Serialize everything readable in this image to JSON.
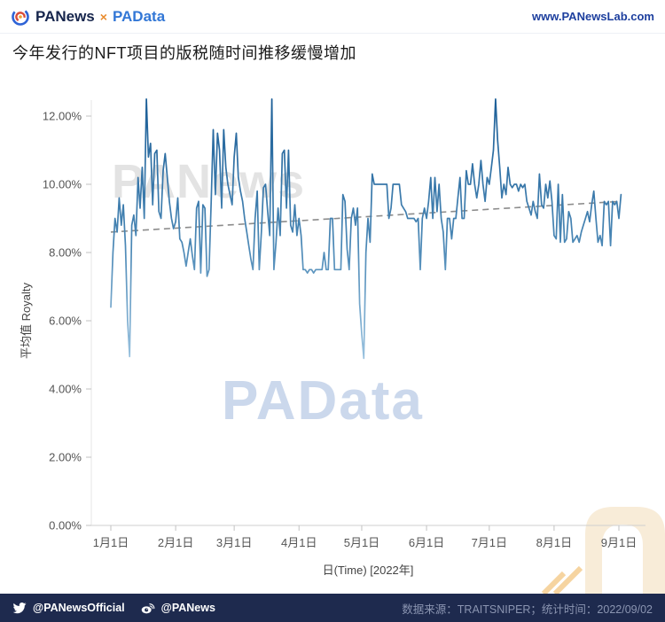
{
  "header": {
    "brand_left": "PANews",
    "brand_separator": "×",
    "brand_right": "PAData",
    "website": "www.PANewsLab.com"
  },
  "title": "今年发行的NFT项目的版税随时间推移缓慢增加",
  "watermarks": {
    "upper": "PANews",
    "center": "PAData"
  },
  "chart_data": {
    "type": "line",
    "title": "今年发行的NFT项目的版税随时间推移缓慢增加",
    "xlabel": "日(Time) [2022年]",
    "ylabel": "平均值 Royalty",
    "ylim": [
      0,
      12.5
    ],
    "grid": false,
    "legend_position": "none",
    "y_ticks": [
      {
        "value": 12,
        "label": "12.00%"
      },
      {
        "value": 10,
        "label": "10.00%"
      },
      {
        "value": 8,
        "label": "8.00%"
      },
      {
        "value": 6,
        "label": "6.00%"
      },
      {
        "value": 4,
        "label": "4.00%"
      },
      {
        "value": 2,
        "label": "2.00%"
      },
      {
        "value": 0,
        "label": "0.00%"
      }
    ],
    "x_ticks": [
      {
        "day": 0,
        "label": "1月1日"
      },
      {
        "day": 31,
        "label": "2月1日"
      },
      {
        "day": 59,
        "label": "3月1日"
      },
      {
        "day": 90,
        "label": "4月1日"
      },
      {
        "day": 120,
        "label": "5月1日"
      },
      {
        "day": 151,
        "label": "6月1日"
      },
      {
        "day": 181,
        "label": "7月1日"
      },
      {
        "day": 212,
        "label": "8月1日"
      },
      {
        "day": 243,
        "label": "9月1日"
      }
    ],
    "series": [
      {
        "name": "平均值 Royalty",
        "unit": "%",
        "start_label": "1月1日 2022年",
        "values": [
          6.4,
          8.0,
          9.0,
          8.6,
          9.6,
          8.8,
          9.4,
          8.2,
          6.0,
          4.95,
          8.8,
          9.1,
          8.5,
          10.2,
          9.3,
          10.5,
          9.0,
          12.5,
          10.8,
          11.2,
          9.4,
          10.9,
          11.0,
          9.2,
          9.0,
          10.4,
          10.9,
          10.2,
          9.5,
          9.0,
          8.7,
          8.9,
          9.6,
          8.4,
          8.3,
          8.0,
          7.6,
          8.0,
          8.4,
          7.9,
          7.5,
          9.3,
          9.5,
          7.4,
          9.4,
          9.3,
          7.3,
          7.5,
          9.5,
          11.6,
          9.7,
          11.5,
          11.0,
          9.3,
          11.6,
          10.5,
          10.0,
          9.7,
          9.4,
          10.8,
          11.5,
          10.2,
          9.8,
          9.5,
          9.0,
          8.6,
          8.2,
          7.8,
          7.5,
          9.0,
          9.8,
          7.5,
          8.6,
          9.9,
          10.0,
          9.2,
          8.5,
          12.5,
          7.5,
          8.3,
          9.3,
          8.5,
          10.9,
          11.0,
          9.3,
          11.0,
          8.8,
          8.6,
          9.4,
          8.5,
          9.0,
          8.5,
          7.5,
          7.5,
          7.4,
          7.5,
          7.5,
          7.4,
          7.5,
          7.5,
          7.5,
          7.5,
          8.0,
          7.5,
          7.5,
          9.0,
          9.0,
          7.5,
          7.5,
          7.5,
          7.5,
          9.7,
          9.5,
          8.1,
          7.5,
          9.0,
          9.3,
          8.8,
          9.3,
          6.5,
          5.6,
          4.9,
          8.0,
          9.0,
          8.3,
          10.3,
          10.0,
          10.0,
          10.0,
          10.0,
          10.0,
          10.0,
          10.0,
          9.0,
          9.3,
          10.0,
          10.0,
          10.0,
          10.0,
          9.4,
          9.3,
          9.2,
          9.0,
          9.0,
          9.0,
          9.0,
          8.9,
          9.0,
          7.5,
          9.0,
          9.3,
          9.0,
          9.5,
          10.2,
          9.0,
          10.2,
          9.2,
          10.0,
          9.0,
          8.6,
          7.5,
          9.0,
          9.0,
          8.4,
          9.0,
          9.0,
          9.6,
          10.2,
          9.0,
          9.0,
          10.4,
          10.0,
          10.0,
          10.6,
          10.0,
          9.6,
          10.0,
          10.7,
          10.0,
          9.5,
          10.2,
          10.0,
          10.5,
          11.0,
          12.5,
          11.3,
          10.5,
          9.6,
          10.0,
          9.7,
          10.5,
          10.0,
          9.9,
          10.0,
          10.0,
          9.8,
          10.0,
          9.9,
          10.0,
          9.5,
          9.3,
          9.1,
          9.5,
          9.2,
          9.0,
          10.3,
          9.4,
          9.3,
          10.0,
          9.6,
          10.1,
          9.5,
          8.5,
          8.4,
          10.0,
          8.3,
          9.7,
          8.3,
          8.4,
          9.2,
          9.0,
          8.3,
          8.4,
          8.5,
          8.3,
          8.6,
          8.8,
          9.0,
          9.2,
          8.9,
          9.4,
          9.8,
          9.0,
          8.3,
          8.5,
          8.2,
          9.5,
          9.4,
          9.5,
          8.2,
          9.5,
          9.4,
          9.5,
          9.0,
          9.7
        ]
      }
    ],
    "trend_line": {
      "style": "dashed",
      "start_value": 8.6,
      "end_value": 9.5,
      "color": "#8c8c8c"
    },
    "colors": {
      "line_top": "#1b5e97",
      "line_mid": "#4a87b5",
      "line_bottom": "#9cc4e0"
    }
  },
  "footer": {
    "twitter_handle": "@PANewsOfficial",
    "weibo_handle": "@PANews",
    "source_note": "数据来源：TRAITSNIPER；统计时间：2022/09/02"
  },
  "colors": {
    "footer_bg": "#1e2a4e",
    "accent_blue": "#3277d6",
    "accent_orange": "#e98b2d"
  }
}
